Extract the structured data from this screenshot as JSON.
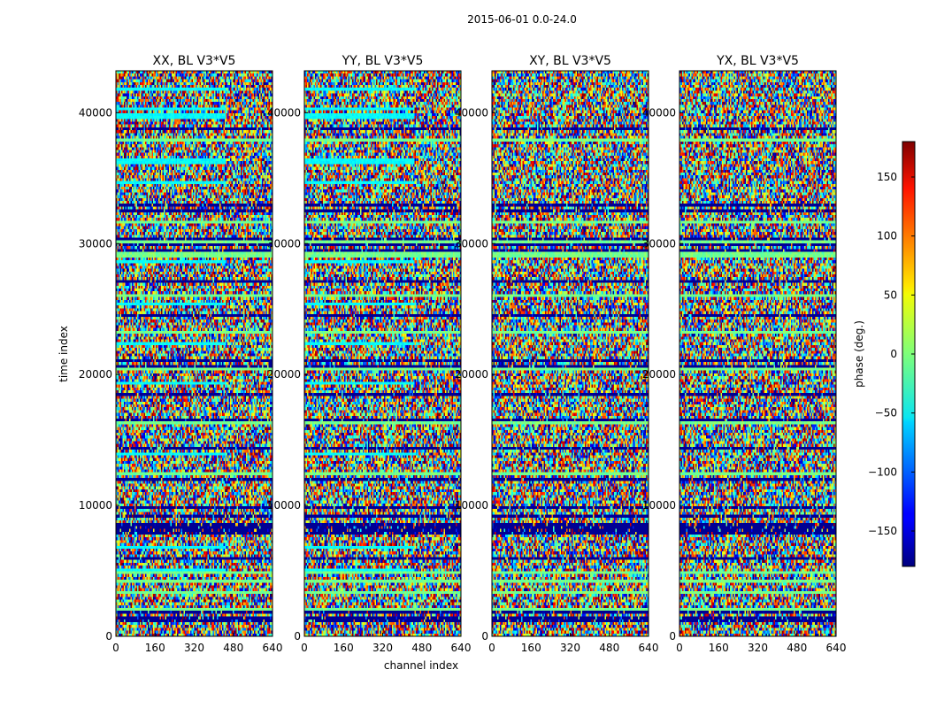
{
  "figure_title": "2015-06-01 0.0-24.0",
  "chart_data": {
    "type": "heatmap",
    "title": "2015-06-01 0.0-24.0",
    "xlabel": "channel index",
    "ylabel": "time index",
    "xlim": [
      0,
      640
    ],
    "ylim": [
      0,
      43200
    ],
    "xticks": [
      "0",
      "160",
      "320",
      "480",
      "640"
    ],
    "yticks": [
      "0",
      "10000",
      "20000",
      "30000",
      "40000"
    ],
    "panels": [
      {
        "title": "XX, BL V3*V5",
        "polarization": "XX",
        "baseline": "V3*V5"
      },
      {
        "title": "YY, BL V3*V5",
        "polarization": "YY",
        "baseline": "V3*V5"
      },
      {
        "title": "XY, BL V3*V5",
        "polarization": "XY",
        "baseline": "V3*V5"
      },
      {
        "title": "YX, BL V3*V5",
        "polarization": "YX",
        "baseline": "V3*V5"
      }
    ],
    "colorbar": {
      "label": "phase (deg.)",
      "range": [
        -180,
        180
      ],
      "ticks": [
        "−150",
        "−100",
        "−50",
        "0",
        "50",
        "100",
        "150"
      ],
      "tick_values": [
        -150,
        -100,
        -50,
        0,
        50,
        100,
        150
      ],
      "colormap": "jet"
    }
  }
}
